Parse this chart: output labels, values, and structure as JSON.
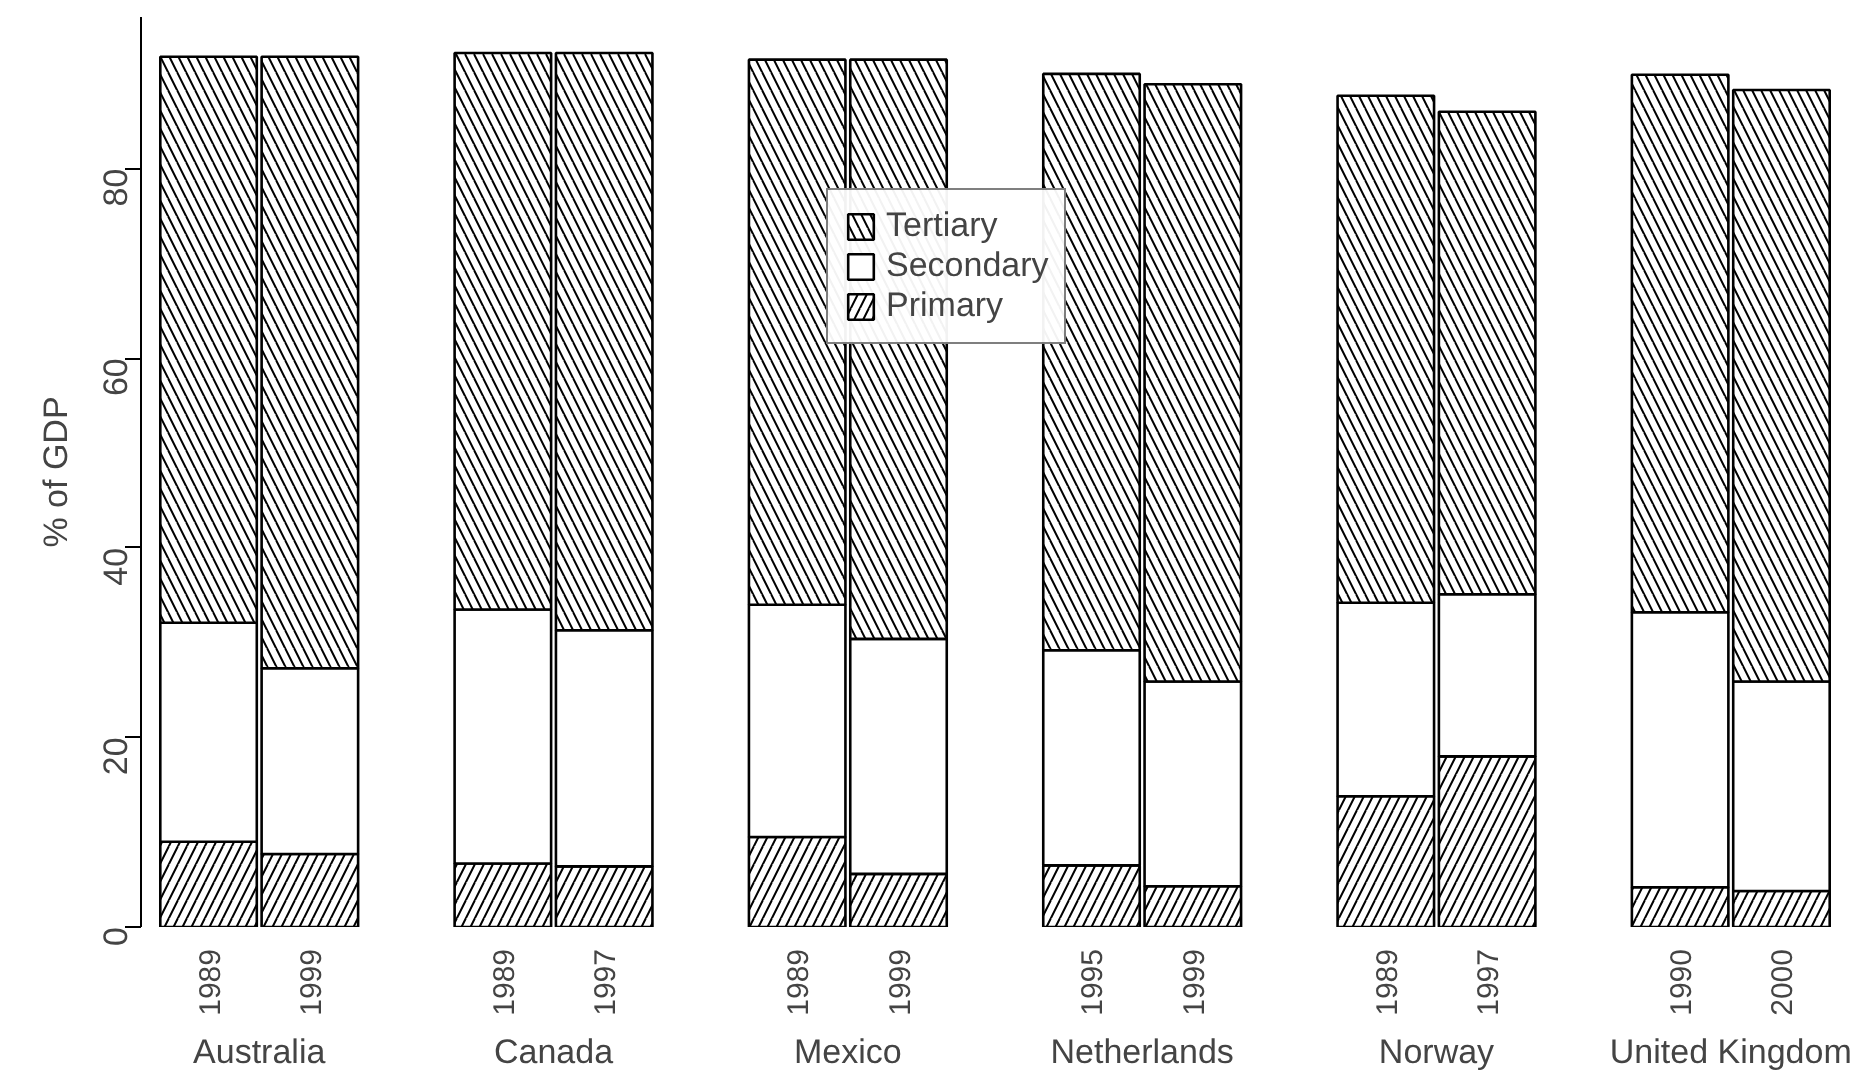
{
  "chart_data": {
    "type": "bar",
    "stacked": true,
    "ylabel": "% of GDP",
    "categories": [
      "1989",
      "1999",
      "1989",
      "1997",
      "1989",
      "1999",
      "1995",
      "1999",
      "1989",
      "1997",
      "1990",
      "2000"
    ],
    "annotations": [
      "Australia",
      "Canada",
      "Mexico",
      "Netherlands",
      "Norway",
      "United Kingdom"
    ],
    "series": [
      {
        "name": "Primary",
        "color": "#ffffff",
        "values": [
          9.0,
          7.7,
          6.7,
          6.4,
          9.5,
          5.6,
          6.5,
          4.3,
          13.8,
          18.0,
          4.2,
          3.8
        ]
      },
      {
        "name": "Secondary",
        "color": "#ffffff",
        "values": [
          23.1,
          19.6,
          26.8,
          24.9,
          24.5,
          24.8,
          22.7,
          21.6,
          20.4,
          17.1,
          29.0,
          22.1
        ]
      },
      {
        "name": "Tertiary",
        "color": "#ffffff",
        "values": [
          59.7,
          64.5,
          58.7,
          60.9,
          57.5,
          61.1,
          60.8,
          63.0,
          53.5,
          50.9,
          56.7,
          62.4
        ]
      }
    ],
    "ylim": [
      0,
      96
    ],
    "yticks": [
      0,
      20,
      40,
      60,
      80
    ],
    "grid": false,
    "legend": "top"
  }
}
